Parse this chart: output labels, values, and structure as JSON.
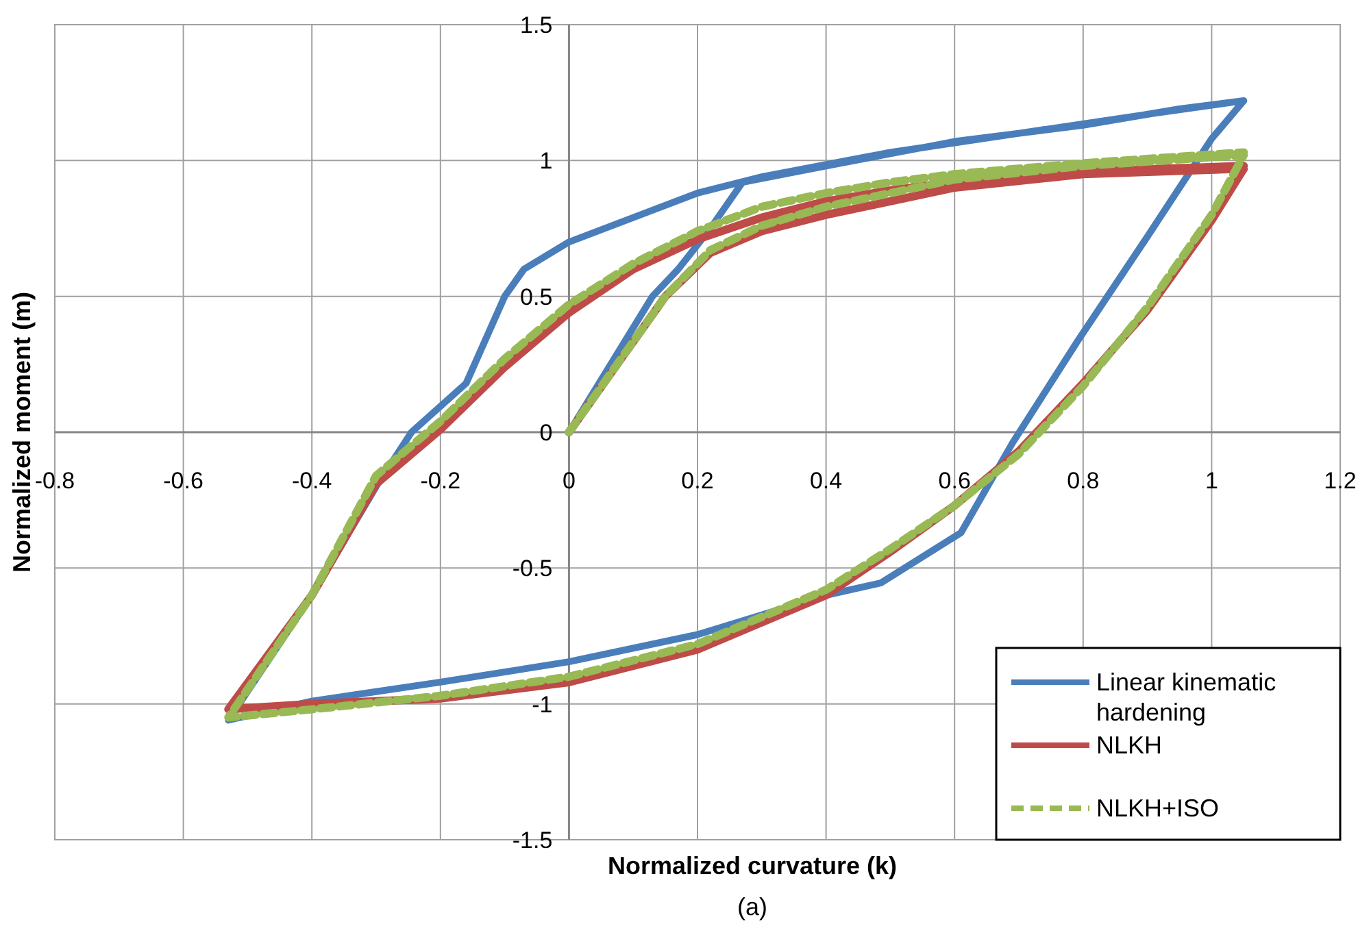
{
  "chart_data": {
    "type": "line",
    "xlabel": "Normalized curvature (k)",
    "ylabel": "Normalized moment (m)",
    "annotations": [
      "(a)"
    ],
    "xlim": [
      -0.8,
      1.2
    ],
    "ylim": [
      -1.5,
      1.5
    ],
    "xticks": [
      -0.8,
      -0.6,
      -0.4,
      -0.2,
      0,
      0.2,
      0.4,
      0.6,
      0.8,
      1,
      1.2
    ],
    "yticks": [
      -1.5,
      -1,
      -0.5,
      0,
      0.5,
      1,
      1.5
    ],
    "grid": true,
    "legend": "bottom right",
    "marker": "none",
    "series": [
      {
        "name": "Linear kinematic hardening",
        "color": "#4a7ebb",
        "line_style": "solid",
        "x": [
          0,
          0.13,
          0.17,
          0.22,
          0.27,
          0.4,
          0.6,
          0.8,
          0.95,
          1.05,
          1.0,
          0.9,
          0.79,
          0.69,
          0.61,
          0.485,
          0.4,
          0.2,
          0,
          -0.2,
          -0.4,
          -0.53,
          -0.4,
          -0.3,
          -0.245,
          -0.16,
          -0.1,
          -0.07,
          0,
          0.1,
          0.2,
          0.3,
          0.5,
          0.7,
          0.9,
          1.05
        ],
        "values": [
          0,
          0.5,
          0.6,
          0.75,
          0.92,
          0.98,
          1.07,
          1.13,
          1.19,
          1.22,
          1.08,
          0.72,
          0.33,
          -0.04,
          -0.37,
          -0.555,
          -0.6,
          -0.745,
          -0.845,
          -0.92,
          -0.99,
          -1.06,
          -0.6,
          -0.2,
          0,
          0.18,
          0.5,
          0.6,
          0.7,
          0.79,
          0.88,
          0.94,
          1.03,
          1.1,
          1.17,
          1.22
        ]
      },
      {
        "name": "NLKH",
        "color": "#be4b48",
        "line_style": "solid",
        "x": [
          0,
          0.15,
          0.22,
          0.3,
          0.4,
          0.5,
          0.6,
          0.8,
          1.05,
          1.0,
          0.9,
          0.8,
          0.7,
          0.6,
          0.5,
          0.4,
          0.2,
          0,
          -0.2,
          -0.4,
          -0.53,
          -0.4,
          -0.3,
          -0.2,
          -0.1,
          0,
          0.1,
          0.2,
          0.3,
          0.4,
          0.5,
          0.6,
          0.8,
          1.05
        ],
        "values": [
          0,
          0.5,
          0.66,
          0.74,
          0.8,
          0.85,
          0.9,
          0.95,
          0.97,
          0.78,
          0.45,
          0.18,
          -0.07,
          -0.27,
          -0.44,
          -0.6,
          -0.8,
          -0.92,
          -0.98,
          -1.0,
          -1.02,
          -0.6,
          -0.19,
          0.01,
          0.24,
          0.44,
          0.6,
          0.71,
          0.79,
          0.85,
          0.89,
          0.92,
          0.96,
          0.98
        ]
      },
      {
        "name": "NLKH+ISO",
        "color": "#98b954",
        "line_style": "dashed",
        "x": [
          0,
          0.15,
          0.22,
          0.3,
          0.4,
          0.5,
          0.6,
          0.8,
          1.05,
          1.0,
          0.9,
          0.8,
          0.7,
          0.6,
          0.5,
          0.4,
          0.2,
          0,
          -0.2,
          -0.4,
          -0.53,
          -0.4,
          -0.3,
          -0.2,
          -0.1,
          0,
          0.1,
          0.2,
          0.3,
          0.4,
          0.5,
          0.6,
          0.8,
          1.05
        ],
        "values": [
          0,
          0.5,
          0.67,
          0.76,
          0.83,
          0.88,
          0.93,
          0.98,
          1.02,
          0.8,
          0.46,
          0.17,
          -0.08,
          -0.27,
          -0.43,
          -0.58,
          -0.78,
          -0.9,
          -0.97,
          -1.02,
          -1.05,
          -0.6,
          -0.16,
          0.04,
          0.27,
          0.47,
          0.62,
          0.74,
          0.83,
          0.88,
          0.92,
          0.95,
          0.99,
          1.03
        ]
      }
    ]
  }
}
